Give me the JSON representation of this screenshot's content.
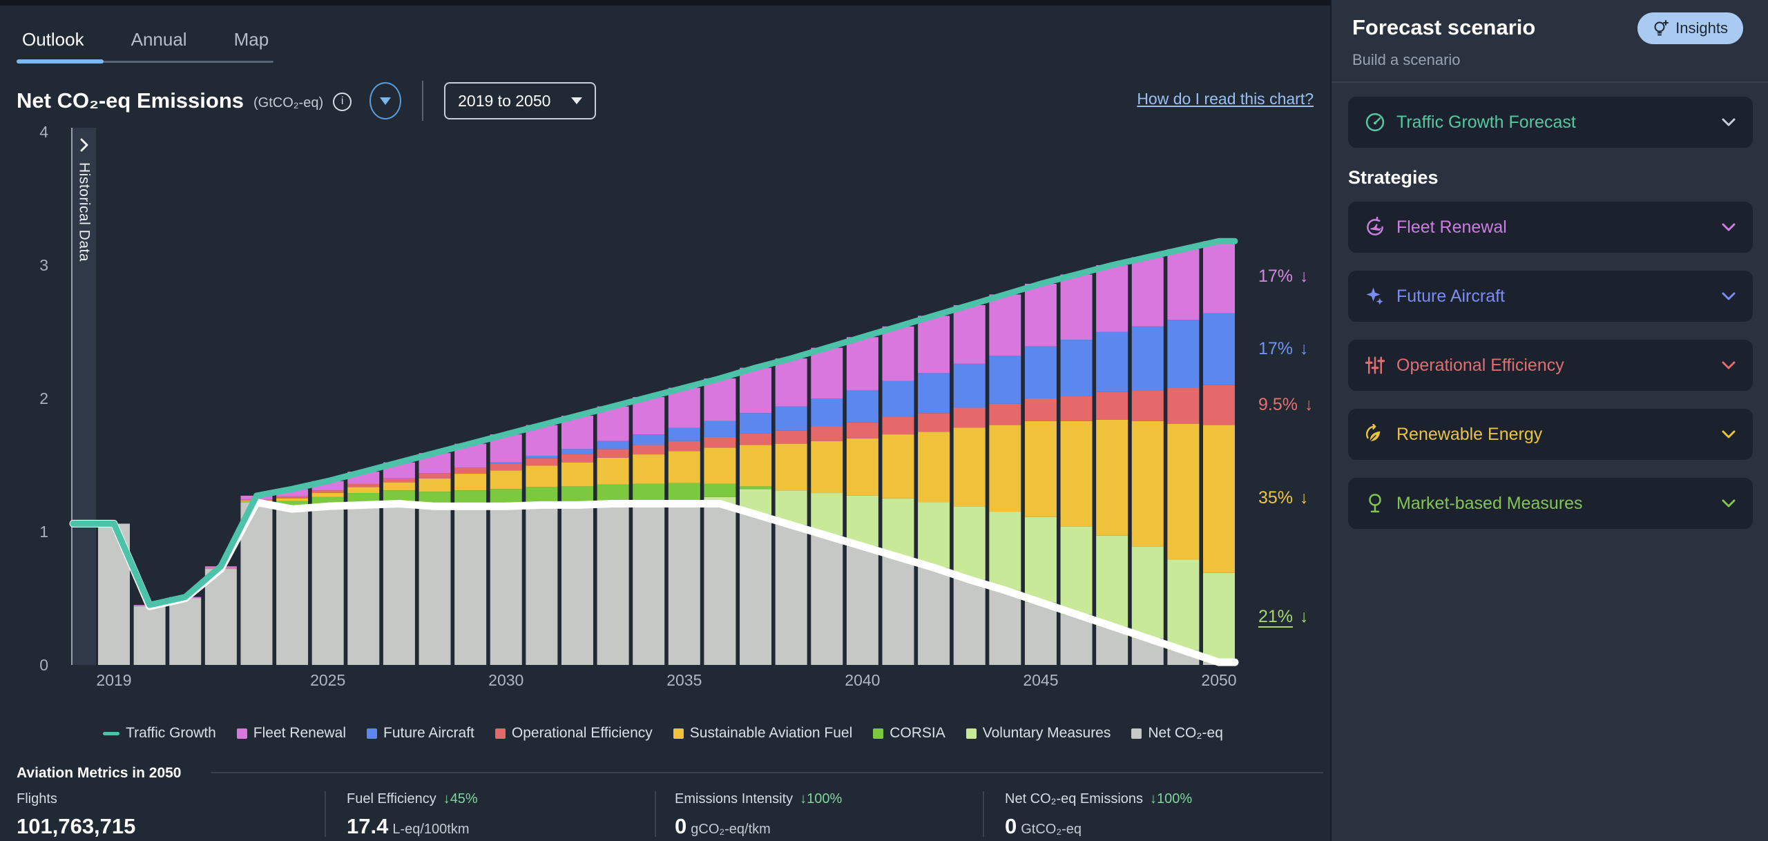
{
  "tabs": {
    "outlook": "Outlook",
    "annual": "Annual",
    "map": "Map"
  },
  "chart_header": {
    "title": "Net CO₂-eq Emissions",
    "unit": "(GtCO₂-eq)",
    "info_glyph": "i",
    "range_value": "2019 to 2050",
    "help_link": "How do I read this chart?"
  },
  "historical_panel": {
    "label": "Historical Data"
  },
  "chart_data": {
    "type": "bar",
    "title": "Net CO₂-eq Emissions",
    "ylabel": "GtCO₂-eq",
    "ylim": [
      0,
      4
    ],
    "yticks": [
      0,
      1,
      2,
      3,
      4
    ],
    "xticks": [
      2019,
      2025,
      2030,
      2035,
      2040,
      2045,
      2050
    ],
    "grid": false,
    "legend_position": "bottom",
    "years": [
      2019,
      2020,
      2021,
      2022,
      2023,
      2024,
      2025,
      2026,
      2027,
      2028,
      2029,
      2030,
      2031,
      2032,
      2033,
      2034,
      2035,
      2036,
      2037,
      2038,
      2039,
      2040,
      2041,
      2042,
      2043,
      2044,
      2045,
      2046,
      2047,
      2048,
      2049,
      2050
    ],
    "stack_order_bottom_to_top": [
      "Net CO₂-eq",
      "Voluntary Measures",
      "CORSIA",
      "Sustainable Aviation Fuel",
      "Operational Efficiency",
      "Future Aircraft",
      "Fleet Renewal"
    ],
    "series": [
      {
        "name": "Net CO₂-eq",
        "color": "#c6c8c6",
        "values": [
          1.06,
          0.44,
          0.5,
          0.72,
          1.22,
          1.17,
          1.19,
          1.2,
          1.21,
          1.19,
          1.19,
          1.19,
          1.2,
          1.2,
          1.21,
          1.21,
          1.21,
          1.21,
          1.13,
          1.05,
          0.97,
          0.89,
          0.81,
          0.73,
          0.64,
          0.56,
          0.47,
          0.38,
          0.29,
          0.2,
          0.11,
          0.02
        ]
      },
      {
        "name": "Voluntary Measures",
        "color": "#c8e998",
        "values": [
          0,
          0,
          0,
          0,
          0,
          0,
          0,
          0,
          0,
          0,
          0,
          0,
          0,
          0,
          0,
          0,
          0,
          0.05,
          0.19,
          0.26,
          0.32,
          0.38,
          0.44,
          0.49,
          0.55,
          0.59,
          0.64,
          0.66,
          0.68,
          0.69,
          0.68,
          0.67
        ]
      },
      {
        "name": "CORSIA",
        "color": "#7cc83e",
        "values": [
          0,
          0,
          0,
          0,
          0.006,
          0.06,
          0.07,
          0.09,
          0.1,
          0.11,
          0.12,
          0.13,
          0.135,
          0.14,
          0.145,
          0.15,
          0.155,
          0.1,
          0.02,
          0,
          0,
          0,
          0,
          0,
          0,
          0,
          0,
          0,
          0,
          0,
          0,
          0
        ]
      },
      {
        "name": "Sustainable Aviation Fuel",
        "color": "#f0c23b",
        "values": [
          0,
          0,
          0,
          0.004,
          0.007,
          0.02,
          0.03,
          0.045,
          0.06,
          0.1,
          0.125,
          0.14,
          0.16,
          0.18,
          0.2,
          0.22,
          0.24,
          0.27,
          0.31,
          0.35,
          0.39,
          0.43,
          0.48,
          0.53,
          0.59,
          0.65,
          0.72,
          0.79,
          0.87,
          0.94,
          1.02,
          1.11
        ]
      },
      {
        "name": "Operational Efficiency",
        "color": "#e5696b",
        "values": [
          0,
          0,
          0,
          0.004,
          0.007,
          0.015,
          0.02,
          0.025,
          0.03,
          0.04,
          0.045,
          0.05,
          0.055,
          0.06,
          0.065,
          0.07,
          0.075,
          0.08,
          0.09,
          0.1,
          0.11,
          0.12,
          0.13,
          0.14,
          0.15,
          0.16,
          0.17,
          0.19,
          0.21,
          0.23,
          0.27,
          0.3
        ]
      },
      {
        "name": "Future Aircraft",
        "color": "#5c87ef",
        "values": [
          0,
          0,
          0,
          0,
          0,
          0,
          0,
          0,
          0,
          0,
          0,
          0.01,
          0.02,
          0.04,
          0.06,
          0.08,
          0.1,
          0.12,
          0.15,
          0.18,
          0.21,
          0.24,
          0.27,
          0.3,
          0.33,
          0.36,
          0.39,
          0.42,
          0.45,
          0.48,
          0.51,
          0.54
        ]
      },
      {
        "name": "Fleet Renewal",
        "color": "#d878dc",
        "values": [
          0,
          0.01,
          0.01,
          0.012,
          0.03,
          0.055,
          0.07,
          0.09,
          0.12,
          0.15,
          0.18,
          0.21,
          0.23,
          0.25,
          0.26,
          0.28,
          0.3,
          0.32,
          0.34,
          0.36,
          0.38,
          0.4,
          0.41,
          0.43,
          0.44,
          0.46,
          0.47,
          0.49,
          0.5,
          0.52,
          0.53,
          0.54
        ]
      }
    ],
    "lines": [
      {
        "name": "Traffic Growth",
        "color": "#4cc2a9",
        "width": 9,
        "values": [
          1.06,
          0.45,
          0.51,
          0.74,
          1.27,
          1.32,
          1.38,
          1.45,
          1.52,
          1.59,
          1.66,
          1.73,
          1.8,
          1.87,
          1.94,
          2.01,
          2.08,
          2.15,
          2.23,
          2.3,
          2.38,
          2.46,
          2.54,
          2.62,
          2.7,
          2.78,
          2.86,
          2.93,
          3.0,
          3.06,
          3.12,
          3.18
        ]
      },
      {
        "name": "Net CO₂-eq",
        "color": "#ffffff",
        "width": 11,
        "values": [
          1.06,
          0.44,
          0.5,
          0.72,
          1.22,
          1.17,
          1.19,
          1.2,
          1.21,
          1.19,
          1.19,
          1.19,
          1.2,
          1.2,
          1.21,
          1.21,
          1.21,
          1.21,
          1.13,
          1.05,
          0.97,
          0.89,
          0.81,
          0.73,
          0.64,
          0.56,
          0.47,
          0.38,
          0.29,
          0.2,
          0.11,
          0.02
        ]
      }
    ],
    "annotations": [
      {
        "text": "17%",
        "arrow": "↓",
        "color": "#d985dd",
        "y_value": 2.91,
        "underline": false
      },
      {
        "text": "17%",
        "arrow": "↓",
        "color": "#7393f2",
        "y_value": 2.37,
        "underline": false
      },
      {
        "text": "9.5%",
        "arrow": "↓",
        "color": "#e57070",
        "y_value": 1.95,
        "underline": false
      },
      {
        "text": "35%",
        "arrow": "↓",
        "color": "#eec63f",
        "y_value": 1.25,
        "underline": false
      },
      {
        "text": "21%",
        "arrow": "↓",
        "color": "#a9d869",
        "y_value": 0.36,
        "underline": true
      }
    ],
    "legend": [
      {
        "label": "Traffic Growth",
        "color": "#4cc2a9",
        "swatch": "line"
      },
      {
        "label": "Fleet Renewal",
        "color": "#d878dc",
        "swatch": "square"
      },
      {
        "label": "Future Aircraft",
        "color": "#5c87ef",
        "swatch": "square"
      },
      {
        "label": "Operational Efficiency",
        "color": "#e5696b",
        "swatch": "square"
      },
      {
        "label": "Sustainable Aviation Fuel",
        "color": "#f0c23b",
        "swatch": "square"
      },
      {
        "label": "CORSIA",
        "color": "#7cc83e",
        "swatch": "square"
      },
      {
        "label": "Voluntary Measures",
        "color": "#c8e998",
        "swatch": "square"
      },
      {
        "label": "Net CO₂-eq",
        "color": "#c6c8c6",
        "swatch": "square"
      }
    ]
  },
  "panel": {
    "title": "Forecast scenario",
    "subtitle": "Build a scenario",
    "insights_label": "Insights",
    "traffic_card": {
      "label": "Traffic Growth Forecast",
      "color": "#56c7a2"
    },
    "strategies_title": "Strategies",
    "strategies": [
      {
        "label": "Fleet Renewal",
        "color": "#cb7ee0"
      },
      {
        "label": "Future Aircraft",
        "color": "#7b8df2"
      },
      {
        "label": "Operational Efficiency",
        "color": "#e06e72"
      },
      {
        "label": "Renewable Energy",
        "color": "#e9c440"
      },
      {
        "label": "Market-based Measures",
        "color": "#84c454"
      }
    ]
  },
  "metrics": {
    "title": "Aviation Metrics in 2050",
    "items": [
      {
        "label": "Flights",
        "delta": "",
        "value": "101,763,715",
        "unit": ""
      },
      {
        "label": "Fuel Efficiency",
        "delta": "↓45%",
        "value": "17.4",
        "unit": "L-eq/100tkm"
      },
      {
        "label": "Emissions Intensity",
        "delta": "↓100%",
        "value": "0",
        "unit": "gCO₂-eq/tkm"
      },
      {
        "label": "Net CO₂-eq Emissions",
        "delta": "↓100%",
        "value": "0",
        "unit": "GtCO₂-eq"
      }
    ]
  }
}
